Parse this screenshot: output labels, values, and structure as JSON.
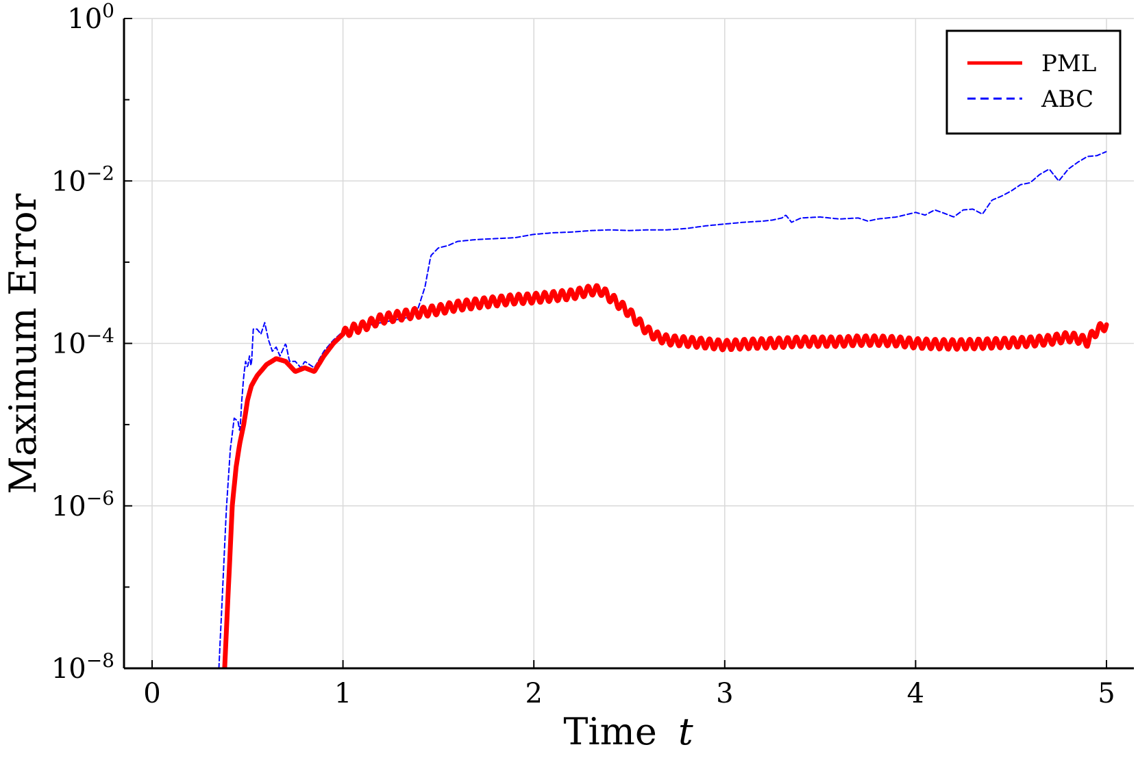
{
  "chart_data": {
    "type": "line",
    "title": "",
    "xlabel": "Time",
    "xlabel_var": "t",
    "ylabel": "Maximum Error",
    "xlim": [
      -0.15,
      5.15
    ],
    "ylim": [
      1e-08,
      1
    ],
    "y_scale": "log",
    "grid": true,
    "legend_position": "top-right",
    "x_ticks": [
      0,
      1,
      2,
      3,
      4,
      5
    ],
    "x_tick_labels": [
      "0",
      "1",
      "2",
      "3",
      "4",
      "5"
    ],
    "y_ticks": [
      {
        "value": 1e-08,
        "base": "10",
        "exp": "−8"
      },
      {
        "value": 1e-06,
        "base": "10",
        "exp": "−6"
      },
      {
        "value": 0.0001,
        "base": "10",
        "exp": "−4"
      },
      {
        "value": 0.01,
        "base": "10",
        "exp": "−2"
      },
      {
        "value": 1,
        "base": "10",
        "exp": "0"
      }
    ],
    "series": [
      {
        "name": "PML",
        "color": "#ff0000",
        "style": "solid",
        "oscillation": 0.06,
        "x": [
          0.38,
          0.4,
          0.42,
          0.44,
          0.46,
          0.48,
          0.5,
          0.52,
          0.55,
          0.6,
          0.65,
          0.7,
          0.75,
          0.8,
          0.85,
          0.9,
          0.95,
          1.0,
          1.05,
          1.1,
          1.2,
          1.3,
          1.4,
          1.5,
          1.6,
          1.7,
          1.8,
          1.9,
          2.0,
          2.1,
          2.2,
          2.3,
          2.35,
          2.4,
          2.45,
          2.5,
          2.55,
          2.6,
          2.65,
          2.7,
          2.8,
          2.9,
          3.0,
          3.1,
          3.2,
          3.3,
          3.4,
          3.5,
          3.6,
          3.7,
          3.8,
          3.9,
          4.0,
          4.1,
          4.2,
          4.3,
          4.4,
          4.5,
          4.6,
          4.7,
          4.8,
          4.85,
          4.9,
          4.93,
          4.96,
          5.0
        ],
        "y": [
          1e-08,
          1e-07,
          1e-06,
          3e-06,
          6e-06,
          1e-05,
          2e-05,
          3e-05,
          4e-05,
          5.5e-05,
          6.5e-05,
          6e-05,
          4.5e-05,
          5e-05,
          4.5e-05,
          7e-05,
          0.0001,
          0.00013,
          0.00015,
          0.00016,
          0.0002,
          0.00022,
          0.00024,
          0.00026,
          0.00029,
          0.00031,
          0.00033,
          0.00035,
          0.00036,
          0.00038,
          0.0004,
          0.00045,
          0.00045,
          0.00037,
          0.0003,
          0.00024,
          0.00018,
          0.00014,
          0.00012,
          0.00011,
          0.000105,
          0.0001,
          9.5e-05,
          9.8e-05,
          0.0001,
          0.000102,
          0.000105,
          0.000105,
          0.000105,
          0.000108,
          0.000108,
          0.000106,
          0.0001,
          9.8e-05,
          9.7e-05,
          9.8e-05,
          0.0001,
          0.000102,
          0.000105,
          0.00011,
          0.00012,
          0.000115,
          0.000105,
          0.00013,
          0.00015,
          0.00017
        ]
      },
      {
        "name": "ABC",
        "color": "#0000ff",
        "style": "dashed",
        "oscillation": 0.0,
        "x": [
          0.35,
          0.37,
          0.39,
          0.41,
          0.43,
          0.45,
          0.46,
          0.47,
          0.48,
          0.49,
          0.5,
          0.51,
          0.52,
          0.53,
          0.55,
          0.57,
          0.59,
          0.61,
          0.63,
          0.65,
          0.67,
          0.7,
          0.72,
          0.75,
          0.78,
          0.8,
          0.85,
          0.9,
          0.95,
          1.0,
          1.1,
          1.2,
          1.3,
          1.35,
          1.38,
          1.4,
          1.43,
          1.46,
          1.5,
          1.55,
          1.6,
          1.7,
          1.8,
          1.9,
          2.0,
          2.1,
          2.2,
          2.3,
          2.4,
          2.5,
          2.6,
          2.7,
          2.8,
          2.9,
          3.0,
          3.1,
          3.2,
          3.25,
          3.3,
          3.32,
          3.35,
          3.4,
          3.5,
          3.6,
          3.7,
          3.75,
          3.8,
          3.9,
          4.0,
          4.05,
          4.1,
          4.15,
          4.2,
          4.25,
          4.3,
          4.35,
          4.4,
          4.45,
          4.5,
          4.55,
          4.6,
          4.65,
          4.7,
          4.75,
          4.8,
          4.85,
          4.9,
          4.95,
          5.0
        ],
        "y": [
          1e-08,
          1e-07,
          1e-06,
          5e-06,
          1.2e-05,
          1.1e-05,
          8e-06,
          2e-05,
          4e-05,
          6e-05,
          5e-05,
          7e-05,
          5e-05,
          0.00015,
          0.00015,
          0.00013,
          0.00018,
          0.00011,
          8e-05,
          9e-05,
          7e-05,
          0.0001,
          6e-05,
          6e-05,
          5e-05,
          6e-05,
          5e-05,
          8e-05,
          0.00011,
          0.00014,
          0.00016,
          0.00018,
          0.0002,
          0.00021,
          0.00022,
          0.0003,
          0.0005,
          0.0012,
          0.0015,
          0.0016,
          0.0018,
          0.0019,
          0.00195,
          0.002,
          0.0022,
          0.0023,
          0.00235,
          0.00245,
          0.0025,
          0.00245,
          0.0025,
          0.0025,
          0.0026,
          0.0028,
          0.00295,
          0.0031,
          0.0032,
          0.0033,
          0.0035,
          0.0038,
          0.0031,
          0.0035,
          0.0036,
          0.0034,
          0.0035,
          0.0032,
          0.0034,
          0.0036,
          0.0041,
          0.0038,
          0.0044,
          0.004,
          0.0036,
          0.0044,
          0.0045,
          0.0039,
          0.0058,
          0.0065,
          0.0075,
          0.009,
          0.0095,
          0.012,
          0.014,
          0.01,
          0.014,
          0.017,
          0.02,
          0.0205,
          0.023
        ]
      }
    ]
  }
}
